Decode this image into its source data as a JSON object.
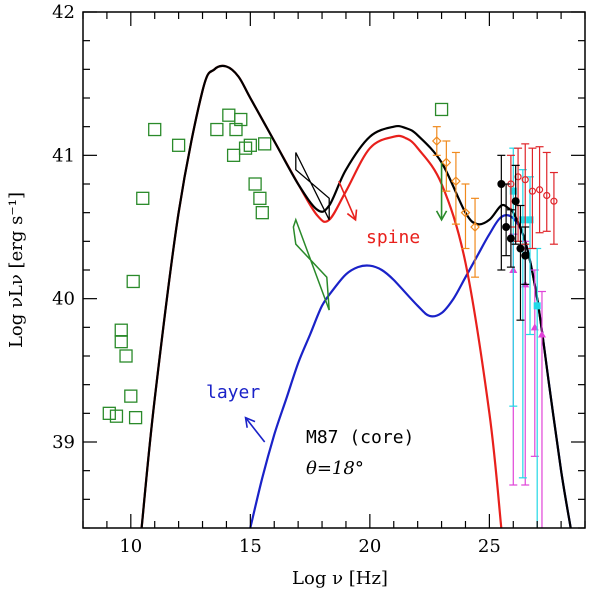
{
  "chart_data": {
    "type": "scatter",
    "title": "",
    "xlabel": "Log ν [Hz]",
    "ylabel": "Log νLν [erg s⁻¹]",
    "xlim": [
      8,
      29
    ],
    "ylim": [
      38.4,
      42
    ],
    "x_ticks": [
      10,
      15,
      20,
      25
    ],
    "y_ticks": [
      39,
      40,
      41,
      42
    ],
    "annotations": {
      "spine": "spine",
      "layer": "layer",
      "source": "M87 (core)",
      "angle": "θ=18°"
    },
    "colors": {
      "spine": "#e8201c",
      "layer": "#1a22c8",
      "total": "#000000",
      "radio_optical": "#2a8a2a",
      "orange": "#f08a1e",
      "red_points": "#e0252a",
      "black_points": "#000000",
      "cyan": "#22d8e6",
      "magenta": "#e044d8"
    },
    "series": [
      {
        "name": "spine model",
        "color_key": "spine",
        "x": [
          10.45,
          11,
          12,
          13,
          13.5,
          14,
          14.5,
          15,
          16,
          17,
          17.8,
          18.3,
          19,
          20,
          21,
          21.5,
          22,
          23,
          24,
          25,
          25.5
        ],
        "y": [
          38.4,
          39.3,
          40.6,
          41.45,
          41.6,
          41.62,
          41.55,
          41.4,
          41.1,
          40.8,
          40.58,
          40.55,
          40.75,
          41.05,
          41.13,
          41.12,
          41.05,
          40.8,
          40.25,
          39.2,
          38.4
        ]
      },
      {
        "name": "layer model",
        "color_key": "layer",
        "x": [
          15.0,
          15.5,
          16,
          16.5,
          17,
          17.5,
          18,
          18.5,
          19,
          19.5,
          20,
          20.5,
          21,
          22,
          22.5,
          23,
          23.5,
          24,
          24.5,
          25,
          25.5,
          26,
          26.5,
          27,
          27.5,
          28,
          28.4
        ],
        "y": [
          38.4,
          38.75,
          39.05,
          39.3,
          39.55,
          39.75,
          39.95,
          40.07,
          40.17,
          40.22,
          40.23,
          40.2,
          40.13,
          39.95,
          39.88,
          39.9,
          40.0,
          40.15,
          40.3,
          40.45,
          40.57,
          40.56,
          40.4,
          40.0,
          39.4,
          38.8,
          38.4
        ]
      },
      {
        "name": "total model",
        "color_key": "total",
        "x": [
          10.45,
          11,
          12,
          13,
          13.5,
          14,
          14.5,
          15,
          16,
          17,
          17.8,
          18.3,
          19,
          20,
          21,
          21.5,
          22,
          23,
          24,
          24.5,
          25,
          25.5,
          25.8,
          26,
          26.5,
          27,
          27.5,
          28,
          28.4
        ],
        "y": [
          38.4,
          39.3,
          40.6,
          41.45,
          41.6,
          41.62,
          41.55,
          41.4,
          41.1,
          40.8,
          40.62,
          40.65,
          40.9,
          41.13,
          41.2,
          41.19,
          41.14,
          40.95,
          40.6,
          40.52,
          40.55,
          40.65,
          40.63,
          40.6,
          40.4,
          40.0,
          39.4,
          38.8,
          38.4
        ]
      },
      {
        "name": "radio-optical data (squares)",
        "color_key": "radio_optical",
        "x": [
          9.1,
          9.4,
          9.6,
          9.6,
          9.8,
          10.0,
          10.1,
          10.2,
          10.5,
          11.0,
          12.0,
          13.6,
          14.1,
          14.3,
          14.4,
          14.6,
          14.8,
          15.0,
          15.2,
          15.4,
          15.5,
          15.6,
          23.0
        ],
        "y": [
          39.2,
          39.18,
          39.7,
          39.78,
          39.6,
          39.32,
          40.12,
          39.17,
          40.7,
          41.18,
          41.07,
          41.18,
          41.28,
          41.0,
          41.18,
          41.25,
          41.05,
          41.07,
          40.8,
          40.7,
          40.6,
          41.08,
          41.32
        ]
      },
      {
        "name": "orange data",
        "color_key": "orange",
        "x": [
          22.8,
          23.2,
          23.6,
          24.0,
          24.4
        ],
        "y": [
          41.1,
          40.95,
          40.82,
          40.6,
          40.5
        ]
      },
      {
        "name": "red circles",
        "color_key": "red_points",
        "x": [
          25.9,
          26.2,
          26.5,
          26.8,
          27.1,
          27.4,
          27.7
        ],
        "y": [
          40.8,
          40.85,
          40.83,
          40.75,
          40.76,
          40.72,
          40.68
        ]
      },
      {
        "name": "black dots",
        "color_key": "black_points",
        "x": [
          25.5,
          25.7,
          25.9,
          26.1,
          26.3,
          26.5
        ],
        "y": [
          40.8,
          40.5,
          40.42,
          40.68,
          40.35,
          40.3
        ]
      },
      {
        "name": "cyan squares",
        "color_key": "cyan",
        "x": [
          26.0,
          26.4,
          26.7,
          27.0
        ],
        "y": [
          40.75,
          40.55,
          40.55,
          39.95
        ]
      },
      {
        "name": "magenta triangles",
        "color_key": "magenta",
        "x": [
          26.0,
          26.5,
          26.9,
          27.2
        ],
        "y": [
          40.2,
          40.1,
          39.8,
          39.75
        ]
      }
    ]
  }
}
